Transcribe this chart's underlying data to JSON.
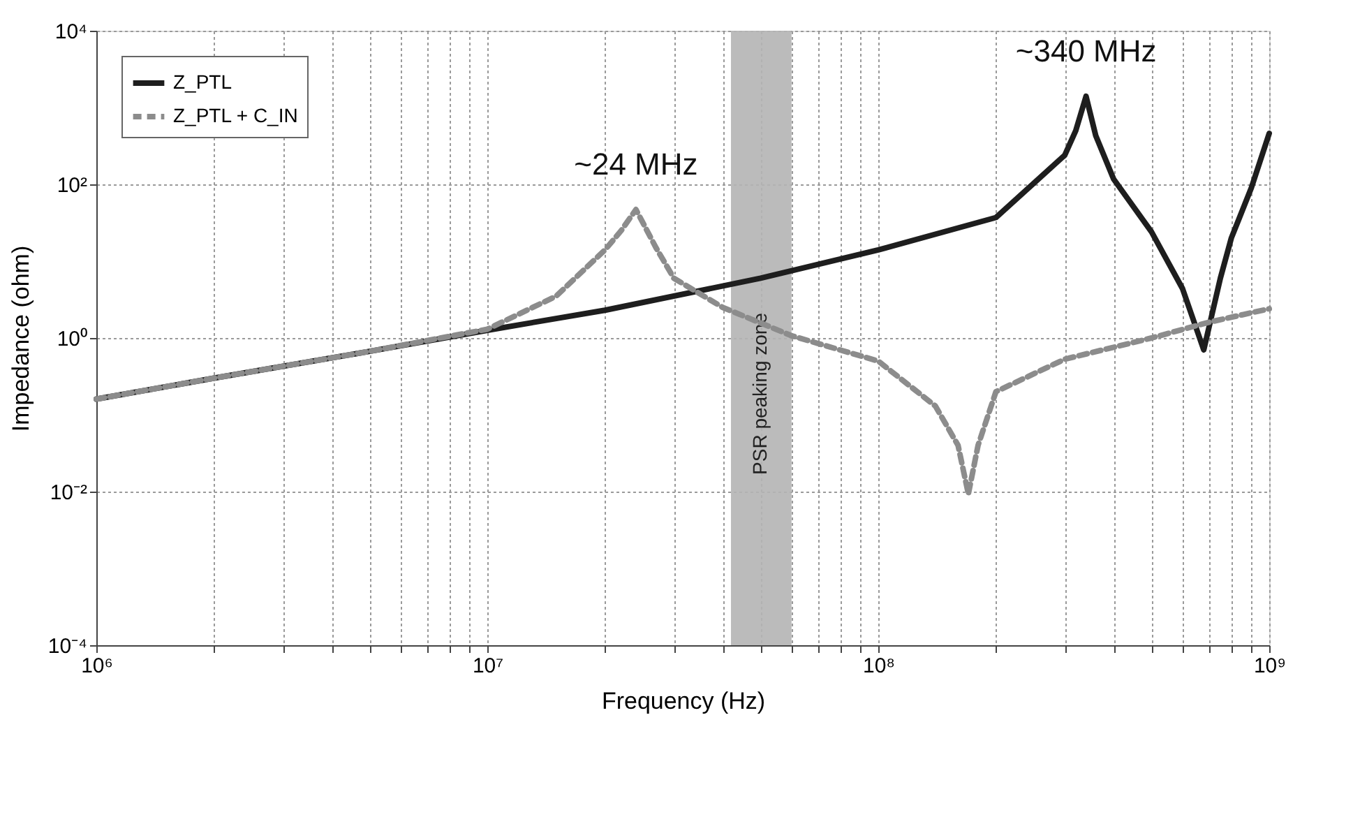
{
  "chart_data": {
    "type": "line",
    "xlabel": "Frequency (Hz)",
    "ylabel": "Impedance (ohm)",
    "log": "xy",
    "xlim": [
      1000000,
      1000000000
    ],
    "ylim": [
      0.0001,
      10000
    ],
    "xticks": [
      {
        "value": 1000000,
        "label": "10⁶"
      },
      {
        "value": 2000000,
        "label": null
      },
      {
        "value": 3000000,
        "label": null
      },
      {
        "value": 4000000,
        "label": null
      },
      {
        "value": 5000000,
        "label": null
      },
      {
        "value": 6000000,
        "label": null
      },
      {
        "value": 7000000,
        "label": null
      },
      {
        "value": 8000000,
        "label": null
      },
      {
        "value": 9000000,
        "label": null
      },
      {
        "value": 10000000,
        "label": "10⁷"
      },
      {
        "value": 20000000,
        "label": null
      },
      {
        "value": 30000000,
        "label": null
      },
      {
        "value": 40000000,
        "label": null
      },
      {
        "value": 50000000,
        "label": null
      },
      {
        "value": 60000000,
        "label": null
      },
      {
        "value": 70000000,
        "label": null
      },
      {
        "value": 80000000,
        "label": null
      },
      {
        "value": 90000000,
        "label": null
      },
      {
        "value": 100000000,
        "label": "10⁸"
      },
      {
        "value": 200000000,
        "label": null
      },
      {
        "value": 300000000,
        "label": null
      },
      {
        "value": 400000000,
        "label": null
      },
      {
        "value": 500000000,
        "label": null
      },
      {
        "value": 600000000,
        "label": null
      },
      {
        "value": 700000000,
        "label": null
      },
      {
        "value": 800000000,
        "label": null
      },
      {
        "value": 900000000,
        "label": null
      },
      {
        "value": 1000000000,
        "label": "10⁹"
      }
    ],
    "yticks": [
      {
        "value": 0.0001,
        "label": "10⁻⁴"
      },
      {
        "value": 0.01,
        "label": "10⁻²"
      },
      {
        "value": 1,
        "label": "10⁰"
      },
      {
        "value": 100,
        "label": "10²"
      },
      {
        "value": 10000,
        "label": "10⁴"
      }
    ],
    "grid": true,
    "legend": "top left",
    "marker": "none",
    "series": [
      {
        "name": "Z_PTL",
        "color": "#1e1e1e",
        "line_style": "solid",
        "x": [
          1000000,
          2000000,
          5000000,
          10000000,
          20000000,
          50000000,
          100000000,
          200000000,
          300000000,
          320000000,
          340000000,
          360000000,
          400000000,
          500000000,
          600000000,
          680000000,
          750000000,
          800000000,
          900000000,
          1000000000
        ],
        "values": [
          0.16,
          0.3,
          0.67,
          1.26,
          2.3,
          6,
          14,
          37,
          240,
          500,
          1400,
          430,
          117,
          24,
          4.4,
          0.7,
          6,
          20,
          90,
          460
        ]
      },
      {
        "name": "Z_PTL + C_IN",
        "color": "#8c8c8c",
        "line_style": "dashed",
        "x": [
          1000000,
          2000000,
          5000000,
          10000000,
          15000000,
          20000000,
          22000000,
          24000000,
          27000000,
          30000000,
          40000000,
          60000000,
          100000000,
          140000000,
          160000000,
          170000000,
          180000000,
          200000000,
          300000000,
          500000000,
          700000000,
          1000000000
        ],
        "values": [
          0.16,
          0.3,
          0.67,
          1.3,
          3.5,
          14,
          25,
          47,
          15,
          6,
          2.5,
          1.07,
          0.5,
          0.13,
          0.04,
          0.0093,
          0.04,
          0.2,
          0.53,
          1.0,
          1.6,
          2.4
        ]
      }
    ],
    "bands": [
      {
        "axis": "x",
        "from": 42000000,
        "to": 60000000,
        "label": "PSR peaking zone",
        "color": "#b4b4b4"
      }
    ],
    "annotations": [
      {
        "text": "~24 MHz",
        "x": 24000000,
        "y": 47
      },
      {
        "text": "~340 MHz",
        "x": 340000000,
        "y": 1400
      }
    ]
  }
}
